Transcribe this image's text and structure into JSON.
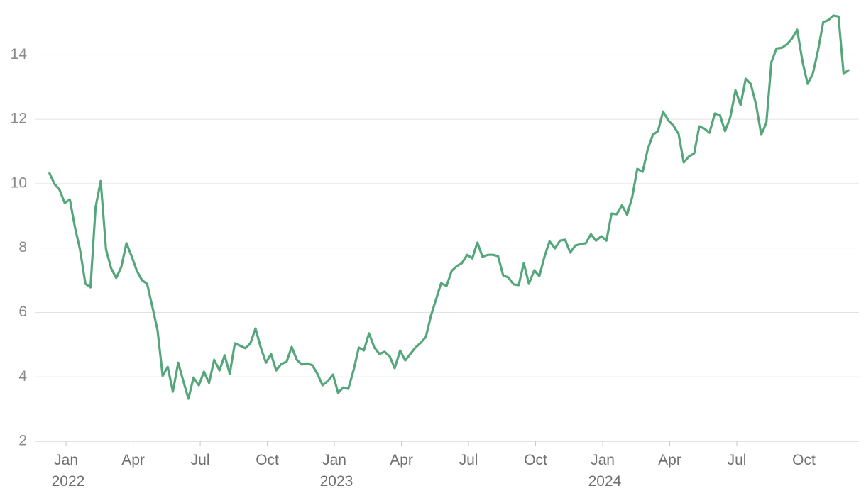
{
  "chart_data": {
    "type": "line",
    "color": "#55a77b",
    "grid": true,
    "xlim": [
      2021.886,
      2024.955
    ],
    "ylim": [
      2,
      15.44
    ],
    "yticks": [
      2,
      4,
      6,
      8,
      10,
      12,
      14
    ],
    "xticks": [
      {
        "value": 2022,
        "label": "Jan 2022"
      },
      {
        "value": 2022.25,
        "label": "Apr"
      },
      {
        "value": 2022.5,
        "label": "Jul"
      },
      {
        "value": 2022.75,
        "label": "Oct"
      },
      {
        "value": 2023,
        "label": "Jan 2023"
      },
      {
        "value": 2023.25,
        "label": "Apr"
      },
      {
        "value": 2023.5,
        "label": "Jul"
      },
      {
        "value": 2023.75,
        "label": "Oct"
      },
      {
        "value": 2024,
        "label": "Jan 2024"
      },
      {
        "value": 2024.25,
        "label": "Apr"
      },
      {
        "value": 2024.5,
        "label": "Jul"
      },
      {
        "value": 2024.75,
        "label": "Oct"
      }
    ],
    "x": [
      2021.937,
      2021.956,
      2021.975,
      2021.995,
      2022.014,
      2022.033,
      2022.052,
      2022.072,
      2022.091,
      2022.11,
      2022.129,
      2022.149,
      2022.168,
      2022.187,
      2022.206,
      2022.225,
      2022.245,
      2022.264,
      2022.283,
      2022.302,
      2022.322,
      2022.341,
      2022.36,
      2022.379,
      2022.398,
      2022.418,
      2022.437,
      2022.456,
      2022.475,
      2022.495,
      2022.514,
      2022.533,
      2022.552,
      2022.572,
      2022.591,
      2022.61,
      2022.629,
      2022.648,
      2022.668,
      2022.687,
      2022.706,
      2022.725,
      2022.745,
      2022.764,
      2022.783,
      2022.802,
      2022.822,
      2022.841,
      2022.86,
      2022.879,
      2022.898,
      2022.918,
      2022.937,
      2022.956,
      2022.975,
      2022.995,
      2023.014,
      2023.033,
      2023.052,
      2023.072,
      2023.091,
      2023.11,
      2023.129,
      2023.149,
      2023.168,
      2023.187,
      2023.206,
      2023.225,
      2023.245,
      2023.264,
      2023.283,
      2023.302,
      2023.322,
      2023.341,
      2023.36,
      2023.379,
      2023.398,
      2023.418,
      2023.437,
      2023.456,
      2023.475,
      2023.495,
      2023.514,
      2023.533,
      2023.552,
      2023.572,
      2023.591,
      2023.61,
      2023.629,
      2023.648,
      2023.668,
      2023.687,
      2023.706,
      2023.725,
      2023.745,
      2023.764,
      2023.783,
      2023.802,
      2023.822,
      2023.841,
      2023.86,
      2023.879,
      2023.898,
      2023.918,
      2023.937,
      2023.956,
      2023.975,
      2023.995,
      2024.014,
      2024.033,
      2024.052,
      2024.072,
      2024.091,
      2024.11,
      2024.129,
      2024.149,
      2024.168,
      2024.187,
      2024.206,
      2024.225,
      2024.245,
      2024.264,
      2024.283,
      2024.302,
      2024.322,
      2024.341,
      2024.36,
      2024.379,
      2024.398,
      2024.418,
      2024.437,
      2024.456,
      2024.475,
      2024.495,
      2024.514,
      2024.533,
      2024.552,
      2024.572,
      2024.591,
      2024.61,
      2024.629,
      2024.648,
      2024.668,
      2024.687,
      2024.706,
      2024.725,
      2024.745,
      2024.764,
      2024.783,
      2024.802,
      2024.822,
      2024.841,
      2024.86,
      2024.879,
      2024.898,
      2024.918
    ],
    "values": [
      10.35,
      10.0,
      9.82,
      9.4,
      9.51,
      8.65,
      7.95,
      6.89,
      6.78,
      9.27,
      10.08,
      7.95,
      7.37,
      7.07,
      7.42,
      8.15,
      7.73,
      7.29,
      7.0,
      6.89,
      6.16,
      5.44,
      4.03,
      4.31,
      3.54,
      4.44,
      3.87,
      3.32,
      3.98,
      3.74,
      4.16,
      3.81,
      4.53,
      4.2,
      4.67,
      4.09,
      5.04,
      4.97,
      4.89,
      5.04,
      5.5,
      4.93,
      4.44,
      4.71,
      4.2,
      4.4,
      4.47,
      4.93,
      4.53,
      4.38,
      4.42,
      4.36,
      4.09,
      3.74,
      3.87,
      4.07,
      3.5,
      3.67,
      3.63,
      4.22,
      4.91,
      4.82,
      5.35,
      4.91,
      4.71,
      4.78,
      4.64,
      4.27,
      4.82,
      4.51,
      4.71,
      4.91,
      5.06,
      5.24,
      5.9,
      6.41,
      6.91,
      6.82,
      7.29,
      7.44,
      7.53,
      7.79,
      7.68,
      8.17,
      7.73,
      7.79,
      7.79,
      7.75,
      7.15,
      7.09,
      6.87,
      6.85,
      7.53,
      6.89,
      7.31,
      7.13,
      7.73,
      8.21,
      7.99,
      8.23,
      8.26,
      7.86,
      8.08,
      8.12,
      8.15,
      8.43,
      8.23,
      8.37,
      8.23,
      9.07,
      9.05,
      9.33,
      9.03,
      9.58,
      10.46,
      10.37,
      11.07,
      11.52,
      11.63,
      12.24,
      11.96,
      11.8,
      11.54,
      10.66,
      10.85,
      10.94,
      11.78,
      11.71,
      11.58,
      12.18,
      12.13,
      11.63,
      12.04,
      12.9,
      12.44,
      13.26,
      13.1,
      12.44,
      11.52,
      11.89,
      13.78,
      14.2,
      14.22,
      14.33,
      14.51,
      14.78,
      13.78,
      13.1,
      13.41,
      14.11,
      15.02,
      15.08,
      15.22,
      15.19,
      13.41,
      13.54
    ]
  }
}
